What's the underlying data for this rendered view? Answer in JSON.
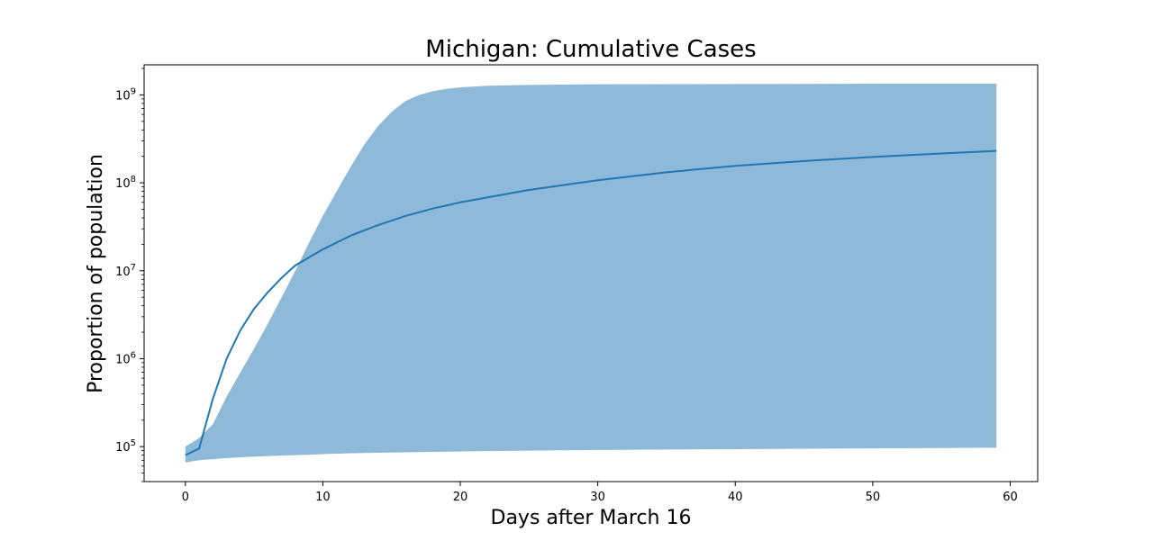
{
  "chart_data": {
    "type": "area",
    "title": "Michigan: Cumulative Cases",
    "xlabel": "Days after March 16",
    "ylabel": "Proportion of population",
    "yscale": "log",
    "xlim": [
      -3,
      62
    ],
    "ylim": [
      40000,
      2200000000
    ],
    "grid": false,
    "x_ticks": [
      0,
      10,
      20,
      30,
      40,
      50,
      60
    ],
    "y_ticks": [
      {
        "value": 100000,
        "base": "10",
        "exp": "5"
      },
      {
        "value": 1000000,
        "base": "10",
        "exp": "6"
      },
      {
        "value": 10000000,
        "base": "10",
        "exp": "7"
      },
      {
        "value": 100000000,
        "base": "10",
        "exp": "8"
      },
      {
        "value": 1000000000,
        "base": "10",
        "exp": "9"
      }
    ],
    "colors": {
      "line": "#1f77b4",
      "band": "#8fb9d8"
    },
    "median": {
      "x": [
        0,
        1,
        2,
        3,
        4,
        5,
        6,
        7,
        8,
        10,
        12,
        14,
        16,
        18,
        20,
        25,
        30,
        35,
        40,
        45,
        50,
        55,
        59
      ],
      "y": [
        80000,
        95000,
        350000,
        1000000,
        2100000,
        3700000,
        5700000,
        8300000,
        11500000,
        17500000,
        25000000,
        33000000,
        42000000,
        51000000,
        60000000,
        83000000,
        107000000,
        132000000,
        156000000,
        177000000,
        197000000,
        216000000,
        231000000
      ]
    },
    "band": {
      "x": [
        0,
        1,
        2,
        3,
        4,
        5,
        6,
        7,
        8,
        9,
        10,
        11,
        12,
        13,
        14,
        15,
        16,
        17,
        18,
        19,
        20,
        22,
        25,
        30,
        40,
        50,
        59
      ],
      "lower": [
        66000,
        70000,
        72000,
        74000,
        75500,
        77000,
        78000,
        79000,
        80000,
        81000,
        82000,
        83000,
        84000,
        84500,
        85000,
        85500,
        86000,
        86500,
        87000,
        87500,
        88000,
        89000,
        90000,
        91500,
        93500,
        95500,
        97000
      ],
      "upper": [
        100000,
        125000,
        180000,
        370000,
        700000,
        1300000,
        2500000,
        5000000,
        10000000,
        21000000,
        42000000,
        80000000,
        150000000,
        270000000,
        440000000,
        640000000,
        850000000,
        1000000000,
        1100000000,
        1170000000,
        1220000000,
        1270000000,
        1300000000,
        1320000000,
        1330000000,
        1340000000,
        1340000000
      ]
    }
  }
}
